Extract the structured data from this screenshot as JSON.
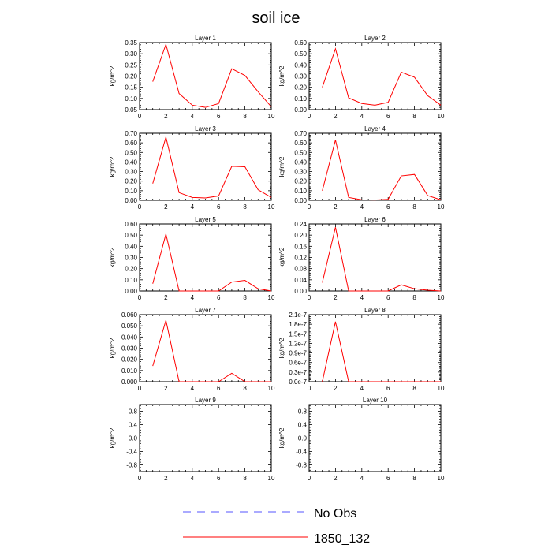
{
  "figure": {
    "title": "soil ice",
    "legend": {
      "position": "bottom-center",
      "entries": [
        {
          "label": "No Obs",
          "color": "#5555ff",
          "style": "dashed"
        },
        {
          "label": "1850_132",
          "color": "#ff0000",
          "style": "solid"
        }
      ]
    }
  },
  "chart_data": [
    {
      "type": "line",
      "title": "Layer 1",
      "ylabel": "kg/m^2",
      "xlim": [
        0,
        10
      ],
      "ylim": [
        0.05,
        0.35
      ],
      "xticks": [
        0,
        2,
        4,
        6,
        8,
        10
      ],
      "yticks": [
        0.05,
        0.1,
        0.15,
        0.2,
        0.25,
        0.3,
        0.35
      ],
      "ytick_labels": [
        "0.05",
        "0.10",
        "0.15",
        "0.20",
        "0.25",
        "0.30",
        "0.35"
      ],
      "x": [
        1,
        2,
        3,
        4,
        5,
        6,
        7,
        8,
        9,
        10
      ],
      "series": [
        {
          "name": "1850_132",
          "color": "#ff0000",
          "values": [
            0.175,
            0.342,
            0.122,
            0.07,
            0.06,
            0.077,
            0.233,
            0.203,
            0.13,
            0.063
          ]
        }
      ]
    },
    {
      "type": "line",
      "title": "Layer 2",
      "ylabel": "kg/m^2",
      "xlim": [
        0,
        10
      ],
      "ylim": [
        0.0,
        0.6
      ],
      "xticks": [
        0,
        2,
        4,
        6,
        8,
        10
      ],
      "yticks": [
        0.0,
        0.1,
        0.2,
        0.3,
        0.4,
        0.5,
        0.6
      ],
      "ytick_labels": [
        "0.00",
        "0.10",
        "0.20",
        "0.30",
        "0.40",
        "0.50",
        "0.60"
      ],
      "x": [
        1,
        2,
        3,
        4,
        5,
        6,
        7,
        8,
        9,
        10
      ],
      "series": [
        {
          "name": "1850_132",
          "color": "#ff0000",
          "values": [
            0.2,
            0.545,
            0.105,
            0.055,
            0.04,
            0.065,
            0.335,
            0.29,
            0.125,
            0.04
          ]
        }
      ]
    },
    {
      "type": "line",
      "title": "Layer 3",
      "ylabel": "kg/m^2",
      "xlim": [
        0,
        10
      ],
      "ylim": [
        0.0,
        0.7
      ],
      "xticks": [
        0,
        2,
        4,
        6,
        8,
        10
      ],
      "yticks": [
        0.0,
        0.1,
        0.2,
        0.3,
        0.4,
        0.5,
        0.6,
        0.7
      ],
      "ytick_labels": [
        "0.00",
        "0.10",
        "0.20",
        "0.30",
        "0.40",
        "0.50",
        "0.60",
        "0.70"
      ],
      "x": [
        1,
        2,
        3,
        4,
        5,
        6,
        7,
        8,
        9,
        10
      ],
      "series": [
        {
          "name": "1850_132",
          "color": "#ff0000",
          "values": [
            0.175,
            0.66,
            0.08,
            0.03,
            0.025,
            0.045,
            0.355,
            0.35,
            0.11,
            0.03
          ]
        }
      ]
    },
    {
      "type": "line",
      "title": "Layer 4",
      "ylabel": "kg/m^2",
      "xlim": [
        0,
        10
      ],
      "ylim": [
        0.0,
        0.7
      ],
      "xticks": [
        0,
        2,
        4,
        6,
        8,
        10
      ],
      "yticks": [
        0.0,
        0.1,
        0.2,
        0.3,
        0.4,
        0.5,
        0.6,
        0.7
      ],
      "ytick_labels": [
        "0.00",
        "0.10",
        "0.20",
        "0.30",
        "0.40",
        "0.50",
        "0.60",
        "0.70"
      ],
      "x": [
        1,
        2,
        3,
        4,
        5,
        6,
        7,
        8,
        9,
        10
      ],
      "series": [
        {
          "name": "1850_132",
          "color": "#ff0000",
          "values": [
            0.1,
            0.63,
            0.03,
            0.005,
            0.003,
            0.01,
            0.255,
            0.27,
            0.05,
            0.005
          ]
        }
      ]
    },
    {
      "type": "line",
      "title": "Layer 5",
      "ylabel": "kg/m^2",
      "xlim": [
        0,
        10
      ],
      "ylim": [
        0.0,
        0.6
      ],
      "xticks": [
        0,
        2,
        4,
        6,
        8,
        10
      ],
      "yticks": [
        0.0,
        0.1,
        0.2,
        0.3,
        0.4,
        0.5,
        0.6
      ],
      "ytick_labels": [
        "0.00",
        "0.10",
        "0.20",
        "0.30",
        "0.40",
        "0.50",
        "0.60"
      ],
      "x": [
        1,
        2,
        3,
        4,
        5,
        6,
        7,
        8,
        9,
        10
      ],
      "series": [
        {
          "name": "1850_132",
          "color": "#ff0000",
          "values": [
            0.065,
            0.51,
            0.0,
            0.0,
            0.0,
            0.0,
            0.08,
            0.095,
            0.02,
            0.0
          ]
        }
      ]
    },
    {
      "type": "line",
      "title": "Layer 6",
      "ylabel": "kg/m^2",
      "xlim": [
        0,
        10
      ],
      "ylim": [
        0.0,
        0.24
      ],
      "xticks": [
        0,
        2,
        4,
        6,
        8,
        10
      ],
      "yticks": [
        0.0,
        0.04,
        0.08,
        0.12,
        0.16,
        0.2,
        0.24
      ],
      "ytick_labels": [
        "0.00",
        "0.04",
        "0.08",
        "0.12",
        "0.16",
        "0.20",
        "0.24"
      ],
      "x": [
        1,
        2,
        3,
        4,
        5,
        6,
        7,
        8,
        9,
        10
      ],
      "series": [
        {
          "name": "1850_132",
          "color": "#ff0000",
          "values": [
            0.03,
            0.228,
            0.0,
            0.0,
            0.0,
            0.0,
            0.022,
            0.008,
            0.003,
            0.0
          ]
        }
      ]
    },
    {
      "type": "line",
      "title": "Layer 7",
      "ylabel": "kg/m^2",
      "xlim": [
        0,
        10
      ],
      "ylim": [
        0.0,
        0.06
      ],
      "xticks": [
        0,
        2,
        4,
        6,
        8,
        10
      ],
      "yticks": [
        0.0,
        0.01,
        0.02,
        0.03,
        0.04,
        0.05,
        0.06
      ],
      "ytick_labels": [
        "0.000",
        "0.010",
        "0.020",
        "0.030",
        "0.040",
        "0.050",
        "0.060"
      ],
      "x": [
        1,
        2,
        3,
        4,
        5,
        6,
        7,
        8,
        9,
        10
      ],
      "series": [
        {
          "name": "1850_132",
          "color": "#ff0000",
          "values": [
            0.014,
            0.055,
            0.0,
            0.0,
            0.0,
            0.0,
            0.0075,
            0.0,
            0.0,
            0.0
          ]
        }
      ]
    },
    {
      "type": "line",
      "title": "Layer 8",
      "ylabel": "kg/m^2",
      "xlim": [
        0,
        10
      ],
      "ylim": [
        0.0,
        2.1e-07
      ],
      "xticks": [
        0,
        2,
        4,
        6,
        8,
        10
      ],
      "yticks": [
        0.0,
        3e-08,
        6e-08,
        9e-08,
        1.2e-07,
        1.5e-07,
        1.8e-07,
        2.1e-07
      ],
      "ytick_labels": [
        "0.0e-7",
        "0.3e-7",
        "0.6e-7",
        "0.9e-7",
        "1.2e-7",
        "1.5e-7",
        "1.8e-7",
        "2.1e-7"
      ],
      "x": [
        1,
        2,
        3,
        4,
        5,
        6,
        7,
        8,
        9,
        10
      ],
      "series": [
        {
          "name": "1850_132",
          "color": "#ff0000",
          "values": [
            0.0,
            1.88e-07,
            0.0,
            0.0,
            0.0,
            0.0,
            0.0,
            0.0,
            0.0,
            0.0
          ]
        }
      ]
    },
    {
      "type": "line",
      "title": "Layer 9",
      "ylabel": "kg/m^2",
      "xlim": [
        0,
        10
      ],
      "ylim": [
        -1.0,
        1.0
      ],
      "xticks": [
        0,
        2,
        4,
        6,
        8,
        10
      ],
      "yticks": [
        -0.8,
        -0.4,
        0.0,
        0.4,
        0.8
      ],
      "ytick_labels": [
        "-0.8",
        "-0.4",
        "0.0",
        "0.4",
        "0.8"
      ],
      "x": [
        1,
        2,
        3,
        4,
        5,
        6,
        7,
        8,
        9,
        10
      ],
      "series": [
        {
          "name": "1850_132",
          "color": "#ff0000",
          "values": [
            0,
            0,
            0,
            0,
            0,
            0,
            0,
            0,
            0,
            0
          ]
        }
      ]
    },
    {
      "type": "line",
      "title": "Layer 10",
      "ylabel": "kg/m^2",
      "xlim": [
        0,
        10
      ],
      "ylim": [
        -1.0,
        1.0
      ],
      "xticks": [
        0,
        2,
        4,
        6,
        8,
        10
      ],
      "yticks": [
        -0.8,
        -0.4,
        0.0,
        0.4,
        0.8
      ],
      "ytick_labels": [
        "-0.8",
        "-0.4",
        "0.0",
        "0.4",
        "0.8"
      ],
      "x": [
        1,
        2,
        3,
        4,
        5,
        6,
        7,
        8,
        9,
        10
      ],
      "series": [
        {
          "name": "1850_132",
          "color": "#ff0000",
          "values": [
            0,
            0,
            0,
            0,
            0,
            0,
            0,
            0,
            0,
            0
          ]
        }
      ]
    }
  ]
}
